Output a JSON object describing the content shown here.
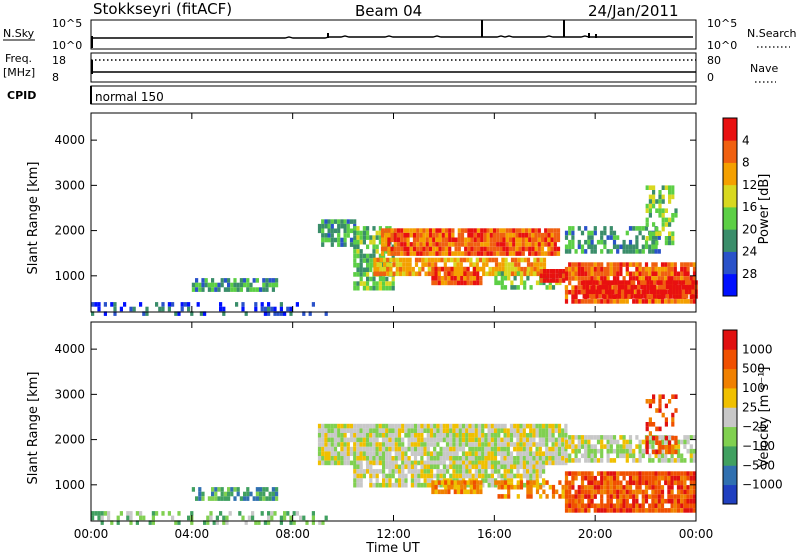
{
  "header": {
    "station": "Stokkseyri (fitACF)",
    "beam": "Beam 04",
    "date": "24/Jan/2011"
  },
  "top_panels": {
    "nsky_label": "N.Sky",
    "nsky_ticks": [
      "10^5",
      "10^0"
    ],
    "nsearch_label": "N.Search",
    "nsearch_ticks": [
      "10^5",
      "10^0"
    ],
    "freq_label": "Freq.",
    "freq_unit": "[MHz]",
    "freq_ticks": [
      "18",
      "8"
    ],
    "nave_label": "Nave",
    "nave_ticks": [
      "80",
      "0"
    ],
    "cpid_label": "CPID",
    "cpid_value": "normal 150"
  },
  "chart_data": [
    {
      "type": "heatmap",
      "name": "power",
      "ylabel": "Slant Range [km]",
      "xlabel": "",
      "y_ticks": [
        1000,
        2000,
        3000,
        4000
      ],
      "ylim": [
        200,
        4600
      ],
      "x_ticks": [
        "00:00",
        "04:00",
        "08:00",
        "12:00",
        "16:00",
        "20:00",
        "00:00"
      ],
      "xlim_hours": [
        0,
        24
      ],
      "colorbar": {
        "label": "Power [dB]",
        "ticks": [
          "4",
          "8",
          "12",
          "16",
          "20",
          "24",
          "28"
        ],
        "colors": [
          "#0010ff",
          "#2a52c9",
          "#3a8d6a",
          "#5ccf45",
          "#d8d820",
          "#f4a000",
          "#f06010",
          "#e81010"
        ]
      },
      "regions": [
        {
          "t0": 0.0,
          "t1": 9.3,
          "r0": 200,
          "r1": 420,
          "level": 1,
          "density": 0.35
        },
        {
          "t0": 4.0,
          "t1": 7.4,
          "r0": 650,
          "r1": 950,
          "level": 2,
          "density": 0.7
        },
        {
          "t0": 9.0,
          "t1": 10.4,
          "r0": 1700,
          "r1": 2250,
          "level": 2,
          "density": 0.8
        },
        {
          "t0": 10.4,
          "t1": 12.0,
          "r0": 700,
          "r1": 2100,
          "level": 3,
          "density": 0.75
        },
        {
          "t0": 11.5,
          "t1": 18.5,
          "r0": 1450,
          "r1": 2050,
          "level": 6,
          "density": 0.95
        },
        {
          "t0": 11.2,
          "t1": 18.0,
          "r0": 1000,
          "r1": 1400,
          "level": 5,
          "density": 0.85
        },
        {
          "t0": 13.5,
          "t1": 15.5,
          "r0": 850,
          "r1": 1200,
          "level": 6,
          "density": 0.95
        },
        {
          "t0": 16.0,
          "t1": 18.8,
          "r0": 700,
          "r1": 1100,
          "level": 3,
          "density": 0.6
        },
        {
          "t0": 17.8,
          "t1": 18.8,
          "r0": 900,
          "r1": 1150,
          "level": 7,
          "density": 0.9
        },
        {
          "t0": 18.8,
          "t1": 22.5,
          "r0": 1500,
          "r1": 2100,
          "level": 2,
          "density": 0.6
        },
        {
          "t0": 18.8,
          "t1": 24.0,
          "r0": 450,
          "r1": 1300,
          "level": 6,
          "density": 0.9
        },
        {
          "t0": 19.5,
          "t1": 24.0,
          "r0": 500,
          "r1": 900,
          "level": 7,
          "density": 0.95
        },
        {
          "t0": 22.0,
          "t1": 23.2,
          "r0": 1700,
          "r1": 3000,
          "level": 3,
          "density": 0.4
        }
      ]
    },
    {
      "type": "heatmap",
      "name": "velocity",
      "ylabel": "Slant Range [km]",
      "xlabel": "Time UT",
      "y_ticks": [
        1000,
        2000,
        3000,
        4000
      ],
      "ylim": [
        200,
        4600
      ],
      "x_ticks": [
        "00:00",
        "04:00",
        "08:00",
        "12:00",
        "16:00",
        "20:00",
        "00:00"
      ],
      "xlim_hours": [
        0,
        24
      ],
      "colorbar": {
        "label": "Velocity [m s⁻¹]",
        "ticks": [
          "1000",
          "500",
          "100",
          "25",
          "−25",
          "−100",
          "−500",
          "−1000"
        ],
        "colors": [
          "#2040c0",
          "#3070b0",
          "#40a060",
          "#80d050",
          "#c8c8c8",
          "#f0c000",
          "#f08000",
          "#f05000",
          "#e01010"
        ]
      },
      "regions": [
        {
          "t0": 0.0,
          "t1": 9.3,
          "r0": 200,
          "r1": 420,
          "level": 3,
          "density": 0.35
        },
        {
          "t0": 4.0,
          "t1": 7.4,
          "r0": 650,
          "r1": 950,
          "level": 2,
          "density": 0.7
        },
        {
          "t0": 9.0,
          "t1": 18.8,
          "r0": 1450,
          "r1": 2350,
          "level": 4,
          "density": 0.95
        },
        {
          "t0": 10.4,
          "t1": 18.0,
          "r0": 1000,
          "r1": 1450,
          "level": 4,
          "density": 0.85
        },
        {
          "t0": 13.5,
          "t1": 15.5,
          "r0": 850,
          "r1": 1100,
          "level": 6,
          "density": 0.9
        },
        {
          "t0": 16.0,
          "t1": 18.8,
          "r0": 700,
          "r1": 1100,
          "level": 6,
          "density": 0.6
        },
        {
          "t0": 18.8,
          "t1": 24.0,
          "r0": 1500,
          "r1": 2100,
          "level": 4,
          "density": 0.7
        },
        {
          "t0": 18.8,
          "t1": 24.0,
          "r0": 450,
          "r1": 1300,
          "level": 7,
          "density": 0.9
        },
        {
          "t0": 22.0,
          "t1": 23.2,
          "r0": 1700,
          "r1": 3000,
          "level": 7,
          "density": 0.4
        }
      ]
    }
  ]
}
